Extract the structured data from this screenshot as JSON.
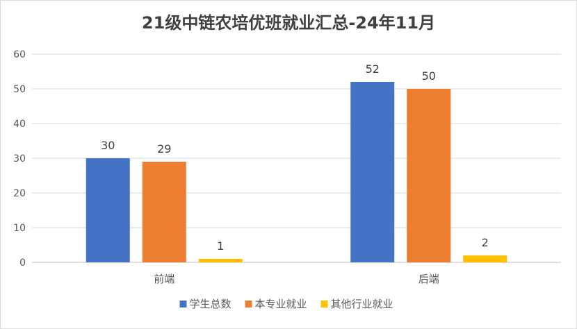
{
  "chart_data": {
    "type": "bar",
    "title": "21级中链农培优班就业汇总-24年11月",
    "categories": [
      "前端",
      "后端"
    ],
    "series": [
      {
        "name": "学生总数",
        "values": [
          30,
          52
        ],
        "color": "#4472C4"
      },
      {
        "name": "本专业就业",
        "values": [
          29,
          50
        ],
        "color": "#ED7D31"
      },
      {
        "name": "其他行业就业",
        "values": [
          1,
          2
        ],
        "color": "#FFC000"
      }
    ],
    "ylim": [
      0,
      60
    ],
    "yticks": [
      0,
      10,
      20,
      30,
      40,
      50,
      60
    ],
    "grid": true,
    "legend": "bottom",
    "xlabel": "",
    "ylabel": ""
  }
}
